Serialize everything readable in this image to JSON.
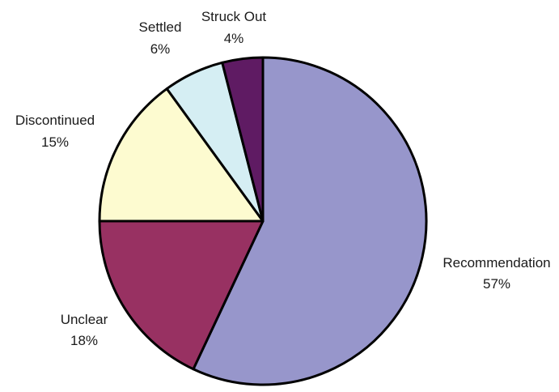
{
  "chart_data": {
    "type": "pie",
    "title": "",
    "start": "12 o'clock",
    "direction": "clockwise",
    "slices": [
      {
        "label": "Recommendation",
        "percent_label": "57%",
        "value": 57,
        "color": "#9796cb"
      },
      {
        "label": "Unclear",
        "percent_label": "18%",
        "value": 18,
        "color": "#983162"
      },
      {
        "label": "Discontinued",
        "percent_label": "15%",
        "value": 15,
        "color": "#fdfbd0"
      },
      {
        "label": "Settled",
        "percent_label": "6%",
        "value": 6,
        "color": "#d5eef3"
      },
      {
        "label": "Struck Out",
        "percent_label": "4%",
        "value": 4,
        "color": "#5f1b63"
      }
    ],
    "legend": "none",
    "data_labels": "outside"
  }
}
